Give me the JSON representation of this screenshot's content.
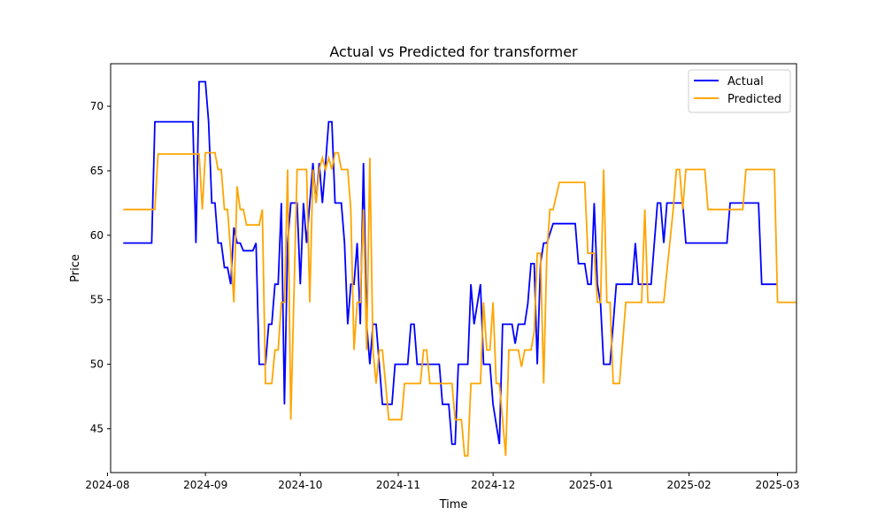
{
  "chart_data": {
    "type": "line",
    "title": "Actual vs Predicted for transformer",
    "xlabel": "Time",
    "ylabel": "Price",
    "x_ticks": [
      "2024-08",
      "2024-09",
      "2024-10",
      "2024-11",
      "2024-12",
      "2025-01",
      "2025-02",
      "2025-03"
    ],
    "y_ticks": [
      45,
      50,
      55,
      60,
      65,
      70
    ],
    "xlim": [
      "2024-08-02",
      "2025-03-07"
    ],
    "ylim": [
      41.6,
      73.3
    ],
    "grid": false,
    "legend": "top-right",
    "series": [
      {
        "name": "Actual",
        "color": "#0000ff",
        "points": [
          [
            "2024-08-06",
            59.4
          ],
          [
            "2024-08-15",
            59.4
          ],
          [
            "2024-08-16",
            68.8
          ],
          [
            "2024-08-28",
            68.8
          ],
          [
            "2024-08-29",
            59.4
          ],
          [
            "2024-08-30",
            71.9
          ],
          [
            "2024-09-01",
            71.9
          ],
          [
            "2024-09-02",
            68.8
          ],
          [
            "2024-09-03",
            62.5
          ],
          [
            "2024-09-04",
            62.5
          ],
          [
            "2024-09-05",
            59.4
          ],
          [
            "2024-09-06",
            59.4
          ],
          [
            "2024-09-07",
            57.5
          ],
          [
            "2024-09-08",
            57.5
          ],
          [
            "2024-09-09",
            56.2
          ],
          [
            "2024-09-10",
            60.6
          ],
          [
            "2024-09-11",
            59.4
          ],
          [
            "2024-09-12",
            59.4
          ],
          [
            "2024-09-13",
            58.8
          ],
          [
            "2024-09-16",
            58.8
          ],
          [
            "2024-09-17",
            59.4
          ],
          [
            "2024-09-18",
            50.0
          ],
          [
            "2024-09-20",
            50.0
          ],
          [
            "2024-09-21",
            53.1
          ],
          [
            "2024-09-22",
            53.1
          ],
          [
            "2024-09-23",
            56.2
          ],
          [
            "2024-09-24",
            56.2
          ],
          [
            "2024-09-25",
            62.5
          ],
          [
            "2024-09-26",
            46.9
          ],
          [
            "2024-09-27",
            59.4
          ],
          [
            "2024-09-28",
            62.5
          ],
          [
            "2024-09-30",
            62.5
          ],
          [
            "2024-10-01",
            56.2
          ],
          [
            "2024-10-02",
            62.5
          ],
          [
            "2024-10-03",
            59.4
          ],
          [
            "2024-10-04",
            62.5
          ],
          [
            "2024-10-05",
            65.6
          ],
          [
            "2024-10-06",
            62.5
          ],
          [
            "2024-10-07",
            65.6
          ],
          [
            "2024-10-08",
            62.5
          ],
          [
            "2024-10-09",
            65.6
          ],
          [
            "2024-10-10",
            68.8
          ],
          [
            "2024-10-11",
            68.8
          ],
          [
            "2024-10-12",
            62.5
          ],
          [
            "2024-10-14",
            62.5
          ],
          [
            "2024-10-15",
            59.4
          ],
          [
            "2024-10-16",
            53.1
          ],
          [
            "2024-10-17",
            56.2
          ],
          [
            "2024-10-18",
            56.2
          ],
          [
            "2024-10-19",
            59.4
          ],
          [
            "2024-10-20",
            53.1
          ],
          [
            "2024-10-21",
            65.6
          ],
          [
            "2024-10-22",
            53.1
          ],
          [
            "2024-10-23",
            50.0
          ],
          [
            "2024-10-24",
            53.1
          ],
          [
            "2024-10-25",
            53.1
          ],
          [
            "2024-10-27",
            46.9
          ],
          [
            "2024-10-30",
            46.9
          ],
          [
            "2024-10-31",
            50.0
          ],
          [
            "2024-11-04",
            50.0
          ],
          [
            "2024-11-05",
            53.1
          ],
          [
            "2024-11-06",
            53.1
          ],
          [
            "2024-11-07",
            50.0
          ],
          [
            "2024-11-14",
            50.0
          ],
          [
            "2024-11-15",
            46.9
          ],
          [
            "2024-11-17",
            46.9
          ],
          [
            "2024-11-18",
            43.8
          ],
          [
            "2024-11-19",
            43.8
          ],
          [
            "2024-11-20",
            50.0
          ],
          [
            "2024-11-23",
            50.0
          ],
          [
            "2024-11-24",
            56.2
          ],
          [
            "2024-11-25",
            53.1
          ],
          [
            "2024-11-27",
            56.2
          ],
          [
            "2024-11-28",
            50.0
          ],
          [
            "2024-11-30",
            50.0
          ],
          [
            "2024-12-01",
            46.9
          ],
          [
            "2024-12-03",
            43.8
          ],
          [
            "2024-12-04",
            53.1
          ],
          [
            "2024-12-07",
            53.1
          ],
          [
            "2024-12-08",
            51.6
          ],
          [
            "2024-12-09",
            53.1
          ],
          [
            "2024-12-11",
            53.1
          ],
          [
            "2024-12-12",
            54.7
          ],
          [
            "2024-12-13",
            57.8
          ],
          [
            "2024-12-14",
            57.8
          ],
          [
            "2024-12-15",
            50.0
          ],
          [
            "2024-12-16",
            57.8
          ],
          [
            "2024-12-17",
            59.4
          ],
          [
            "2024-12-18",
            59.4
          ],
          [
            "2024-12-20",
            60.9
          ],
          [
            "2024-12-27",
            60.9
          ],
          [
            "2024-12-28",
            57.8
          ],
          [
            "2024-12-30",
            57.8
          ],
          [
            "2024-12-31",
            56.2
          ],
          [
            "2025-01-01",
            56.2
          ],
          [
            "2025-01-02",
            62.5
          ],
          [
            "2025-01-03",
            56.2
          ],
          [
            "2025-01-04",
            54.7
          ],
          [
            "2025-01-05",
            50.0
          ],
          [
            "2025-01-07",
            50.0
          ],
          [
            "2025-01-09",
            56.2
          ],
          [
            "2025-01-14",
            56.2
          ],
          [
            "2025-01-15",
            59.4
          ],
          [
            "2025-01-16",
            56.2
          ],
          [
            "2025-01-20",
            56.2
          ],
          [
            "2025-01-22",
            62.5
          ],
          [
            "2025-01-23",
            62.5
          ],
          [
            "2025-01-24",
            59.4
          ],
          [
            "2025-01-25",
            62.5
          ],
          [
            "2025-01-30",
            62.5
          ],
          [
            "2025-01-31",
            59.4
          ],
          [
            "2025-02-13",
            59.4
          ],
          [
            "2025-02-14",
            62.5
          ],
          [
            "2025-02-23",
            62.5
          ],
          [
            "2025-02-24",
            56.2
          ],
          [
            "2025-03-01",
            56.2
          ]
        ]
      },
      {
        "name": "Predicted",
        "color": "#ffa500",
        "points": [
          [
            "2024-08-06",
            62.0
          ],
          [
            "2024-08-16",
            62.0
          ],
          [
            "2024-08-17",
            66.3
          ],
          [
            "2024-08-30",
            66.3
          ],
          [
            "2024-08-31",
            62.0
          ],
          [
            "2024-09-01",
            66.4
          ],
          [
            "2024-09-04",
            66.4
          ],
          [
            "2024-09-05",
            65.1
          ],
          [
            "2024-09-06",
            65.1
          ],
          [
            "2024-09-07",
            62.0
          ],
          [
            "2024-09-08",
            62.0
          ],
          [
            "2024-09-09",
            58.7
          ],
          [
            "2024-09-10",
            54.8
          ],
          [
            "2024-09-11",
            63.8
          ],
          [
            "2024-09-12",
            62.0
          ],
          [
            "2024-09-13",
            62.0
          ],
          [
            "2024-09-14",
            60.8
          ],
          [
            "2024-09-18",
            60.8
          ],
          [
            "2024-09-19",
            62.0
          ],
          [
            "2024-09-20",
            48.5
          ],
          [
            "2024-09-22",
            48.5
          ],
          [
            "2024-09-23",
            51.1
          ],
          [
            "2024-09-24",
            51.1
          ],
          [
            "2024-09-25",
            54.8
          ],
          [
            "2024-09-26",
            54.8
          ],
          [
            "2024-09-27",
            65.1
          ],
          [
            "2024-09-28",
            45.7
          ],
          [
            "2024-09-30",
            65.1
          ],
          [
            "2024-10-03",
            65.1
          ],
          [
            "2024-10-04",
            54.8
          ],
          [
            "2024-10-05",
            65.1
          ],
          [
            "2024-10-06",
            62.5
          ],
          [
            "2024-10-07",
            65.1
          ],
          [
            "2024-10-08",
            66.0
          ],
          [
            "2024-10-09",
            65.1
          ],
          [
            "2024-10-10",
            66.0
          ],
          [
            "2024-10-11",
            65.1
          ],
          [
            "2024-10-12",
            66.4
          ],
          [
            "2024-10-13",
            66.4
          ],
          [
            "2024-10-14",
            65.1
          ],
          [
            "2024-10-16",
            65.1
          ],
          [
            "2024-10-17",
            62.0
          ],
          [
            "2024-10-18",
            51.1
          ],
          [
            "2024-10-19",
            54.8
          ],
          [
            "2024-10-20",
            54.8
          ],
          [
            "2024-10-21",
            62.0
          ],
          [
            "2024-10-22",
            51.1
          ],
          [
            "2024-10-23",
            66.0
          ],
          [
            "2024-10-24",
            51.1
          ],
          [
            "2024-10-25",
            48.5
          ],
          [
            "2024-10-26",
            51.1
          ],
          [
            "2024-10-27",
            51.1
          ],
          [
            "2024-10-28",
            48.5
          ],
          [
            "2024-10-29",
            45.7
          ],
          [
            "2024-11-02",
            45.7
          ],
          [
            "2024-11-03",
            48.5
          ],
          [
            "2024-11-08",
            48.5
          ],
          [
            "2024-11-09",
            51.1
          ],
          [
            "2024-11-10",
            51.1
          ],
          [
            "2024-11-11",
            48.5
          ],
          [
            "2024-11-18",
            48.5
          ],
          [
            "2024-11-19",
            45.7
          ],
          [
            "2024-11-21",
            45.7
          ],
          [
            "2024-11-22",
            42.9
          ],
          [
            "2024-11-23",
            42.9
          ],
          [
            "2024-11-24",
            48.5
          ],
          [
            "2024-11-27",
            48.5
          ],
          [
            "2024-11-28",
            54.8
          ],
          [
            "2024-11-29",
            51.1
          ],
          [
            "2024-11-30",
            51.1
          ],
          [
            "2024-12-01",
            54.8
          ],
          [
            "2024-12-02",
            48.5
          ],
          [
            "2024-12-03",
            48.5
          ],
          [
            "2024-12-04",
            45.7
          ],
          [
            "2024-12-05",
            42.9
          ],
          [
            "2024-12-06",
            51.1
          ],
          [
            "2024-12-09",
            51.1
          ],
          [
            "2024-12-10",
            49.8
          ],
          [
            "2024-12-11",
            51.1
          ],
          [
            "2024-12-13",
            51.1
          ],
          [
            "2024-12-14",
            52.5
          ],
          [
            "2024-12-15",
            58.6
          ],
          [
            "2024-12-16",
            58.6
          ],
          [
            "2024-12-17",
            48.5
          ],
          [
            "2024-12-18",
            58.6
          ],
          [
            "2024-12-19",
            62.0
          ],
          [
            "2024-12-20",
            62.0
          ],
          [
            "2024-12-22",
            64.1
          ],
          [
            "2024-12-30",
            64.1
          ],
          [
            "2024-12-31",
            58.6
          ],
          [
            "2025-01-02",
            58.6
          ],
          [
            "2025-01-03",
            54.8
          ],
          [
            "2025-01-04",
            54.8
          ],
          [
            "2025-01-05",
            65.1
          ],
          [
            "2025-01-06",
            54.8
          ],
          [
            "2025-01-07",
            54.8
          ],
          [
            "2025-01-08",
            48.5
          ],
          [
            "2025-01-10",
            48.5
          ],
          [
            "2025-01-12",
            54.8
          ],
          [
            "2025-01-17",
            54.8
          ],
          [
            "2025-01-18",
            62.0
          ],
          [
            "2025-01-19",
            54.8
          ],
          [
            "2025-01-24",
            54.8
          ],
          [
            "2025-01-27",
            62.0
          ],
          [
            "2025-01-28",
            65.1
          ],
          [
            "2025-01-29",
            65.1
          ],
          [
            "2025-01-30",
            62.0
          ],
          [
            "2025-01-31",
            65.1
          ],
          [
            "2025-02-06",
            65.1
          ],
          [
            "2025-02-07",
            62.0
          ],
          [
            "2025-02-18",
            62.0
          ],
          [
            "2025-02-19",
            65.1
          ],
          [
            "2025-02-28",
            65.1
          ],
          [
            "2025-03-01",
            54.8
          ],
          [
            "2025-03-07",
            54.8
          ]
        ]
      }
    ]
  }
}
